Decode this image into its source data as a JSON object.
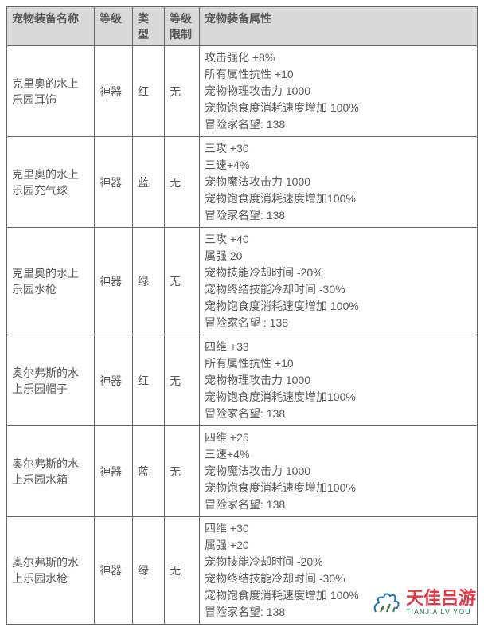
{
  "table": {
    "headers": [
      "宠物装备名称",
      "等级",
      "类型",
      "等级限制",
      "宠物装备属性"
    ],
    "header_bg": "#d9d9d9",
    "border_color": "#666666",
    "text_color": "#595959",
    "font_size": 14,
    "rows": [
      {
        "name": "克里奥的水上乐园耳饰",
        "grade": "神器",
        "type": "红",
        "limit": "无",
        "attrs": [
          "攻击强化 +8%",
          "所有属性抗性 +10",
          "宠物物理攻击力 1000",
          "宠物饱食度消耗速度增加 100%",
          "冒险家名望: 138"
        ]
      },
      {
        "name": "克里奥的水上乐园充气球",
        "grade": "神器",
        "type": "蓝",
        "limit": "无",
        "attrs": [
          "三攻 +30",
          "三速+4%",
          "宠物魔法攻击力 1000",
          "宠物饱食度消耗速度增加100%",
          "冒险家名望: 138"
        ]
      },
      {
        "name": "克里奥的水上乐园水枪",
        "grade": "神器",
        "type": "绿",
        "limit": "无",
        "attrs": [
          "三攻 +40",
          "属强 20",
          "宠物技能冷却时间 -20%",
          "宠物终结技能冷却时间 -30%",
          "宠物饱食度消耗速度增加 100%",
          "冒险家名望 : 138"
        ]
      },
      {
        "name": "奥尔弗斯的水上乐园帽子",
        "grade": "神器",
        "type": "红",
        "limit": "无",
        "attrs": [
          "四维 +33",
          "所有属性抗性 +10",
          "宠物物理攻击力 1000",
          "宠物饱食度消耗速度增加100%",
          "冒险家名望: 138"
        ]
      },
      {
        "name": "奥尔弗斯的水上乐园水箱",
        "grade": "神器",
        "type": "蓝",
        "limit": "无",
        "attrs": [
          "四维 +25",
          "三速+4%",
          "宠物魔法攻击力 1000",
          "宠物饱食度消耗速度增加100%",
          "冒险家名望: 138"
        ]
      },
      {
        "name": "奥尔弗斯的水上乐园水枪",
        "grade": "神器",
        "type": "绿",
        "limit": "无",
        "attrs": [
          "四维 +30",
          "属强 +20",
          "宠物技能冷却时间 -20%",
          "宠物终结技能冷却时间 -30%",
          "宠物饱食度消耗速度增加 100%",
          "冒险家名望: 138"
        ]
      }
    ]
  },
  "watermark": {
    "cn": "天佳吕游",
    "py": "TIANJIA LV YOU",
    "colors": {
      "red": "#e63946",
      "orange": "#f4a261",
      "blue": "#1d71b8",
      "green": "#2a7a4a"
    }
  }
}
